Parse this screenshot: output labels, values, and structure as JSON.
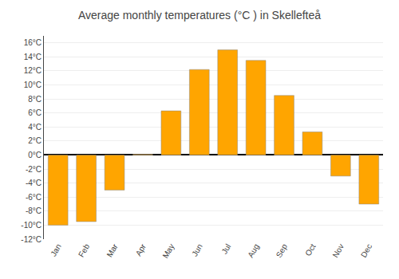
{
  "chart_data": {
    "type": "bar",
    "title": "Average monthly temperatures (°C ) in Skellefteå",
    "categories": [
      "Jan",
      "Feb",
      "Mar",
      "Apr",
      "May",
      "Jun",
      "Jul",
      "Aug",
      "Sep",
      "Oct",
      "Nov",
      "Dec"
    ],
    "values": [
      -10.0,
      -9.5,
      -5.0,
      0.1,
      6.3,
      12.2,
      15.0,
      13.5,
      8.5,
      3.3,
      -3.0,
      -7.0
    ],
    "color": "#FFA500",
    "ylim": [
      -12,
      17
    ],
    "yticks": [
      {
        "value": -12,
        "label": "-12°C"
      },
      {
        "value": -10,
        "label": "-10°C"
      },
      {
        "value": -8,
        "label": "-8°C"
      },
      {
        "value": -6,
        "label": "-6°C"
      },
      {
        "value": -4,
        "label": "-4°C"
      },
      {
        "value": -2,
        "label": "-2°C"
      },
      {
        "value": 0,
        "label": "0°C"
      },
      {
        "value": 2,
        "label": "2°C"
      },
      {
        "value": 4,
        "label": "4°C"
      },
      {
        "value": 6,
        "label": "6°C"
      },
      {
        "value": 8,
        "label": "8°C"
      },
      {
        "value": 10,
        "label": "10°C"
      },
      {
        "value": 12,
        "label": "12°C"
      },
      {
        "value": 14,
        "label": "14°C"
      },
      {
        "value": 16,
        "label": "16°C"
      }
    ],
    "grid": true
  }
}
